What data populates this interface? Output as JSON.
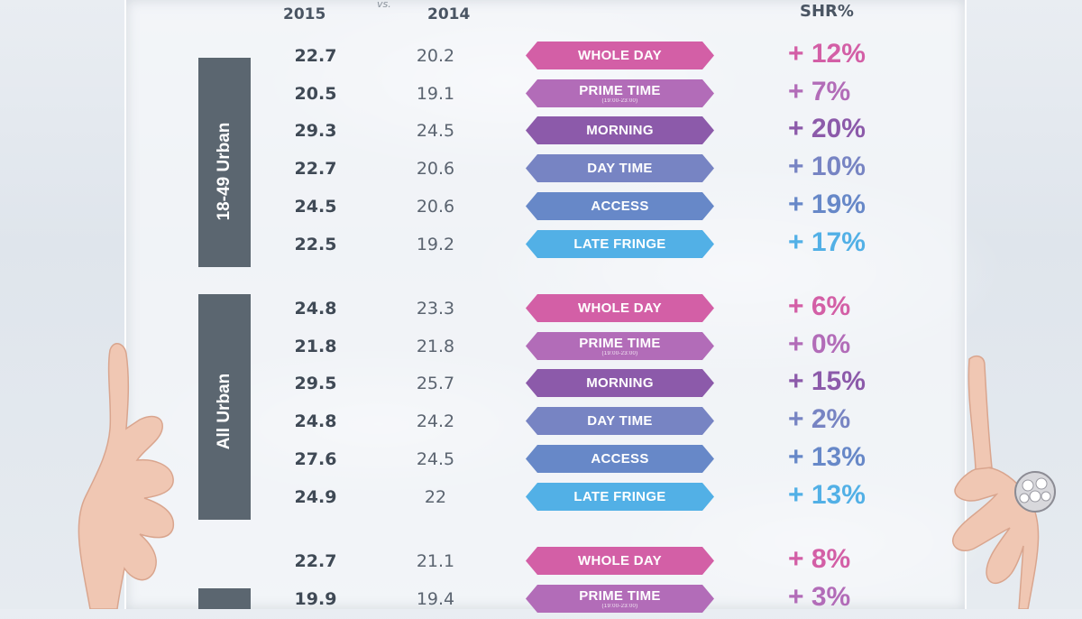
{
  "header": {
    "year_2015": "2015",
    "vs": "vs.",
    "year_2014": "2014",
    "shr": "SHR%"
  },
  "colors": {
    "whole_day": "#d35fa6",
    "prime_time": "#b26cb8",
    "morning": "#8c5aaa",
    "day_time": "#7784c3",
    "access": "#6788c8",
    "late_fringe": "#52b0e6"
  },
  "groups": [
    {
      "label": "18-49 Urban",
      "rows": [
        {
          "v2015": "22.7",
          "v2014": "20.2",
          "band": "WHOLE DAY",
          "shr": "+ 12%"
        },
        {
          "v2015": "20.5",
          "v2014": "19.1",
          "band": "PRIME TIME",
          "band_sub": "(19:00-23:00)",
          "shr": "+ 7%"
        },
        {
          "v2015": "29.3",
          "v2014": "24.5",
          "band": "MORNING",
          "shr": "+ 20%"
        },
        {
          "v2015": "22.7",
          "v2014": "20.6",
          "band": "DAY TIME",
          "shr": "+ 10%"
        },
        {
          "v2015": "24.5",
          "v2014": "20.6",
          "band": "ACCESS",
          "shr": "+ 19%"
        },
        {
          "v2015": "22.5",
          "v2014": "19.2",
          "band": "LATE FRINGE",
          "shr": "+ 17%"
        }
      ]
    },
    {
      "label": "All Urban",
      "rows": [
        {
          "v2015": "24.8",
          "v2014": "23.3",
          "band": "WHOLE DAY",
          "shr": "+ 6%"
        },
        {
          "v2015": "21.8",
          "v2014": "21.8",
          "band": "PRIME TIME",
          "band_sub": "(19:00-23:00)",
          "shr": "+ 0%"
        },
        {
          "v2015": "29.5",
          "v2014": "25.7",
          "band": "MORNING",
          "shr": "+ 15%"
        },
        {
          "v2015": "24.8",
          "v2014": "24.2",
          "band": "DAY TIME",
          "shr": "+ 2%"
        },
        {
          "v2015": "27.6",
          "v2014": "24.5",
          "band": "ACCESS",
          "shr": "+ 13%"
        },
        {
          "v2015": "24.9",
          "v2014": "22",
          "band": "LATE FRINGE",
          "shr": "+ 13%"
        }
      ]
    },
    {
      "label": "",
      "rows": [
        {
          "v2015": "22.7",
          "v2014": "21.1",
          "band": "WHOLE DAY",
          "shr": "+ 8%"
        },
        {
          "v2015": "19.9",
          "v2014": "19.4",
          "band": "PRIME TIME",
          "band_sub": "(19:00-23:00)",
          "shr": "+ 3%"
        }
      ]
    }
  ]
}
